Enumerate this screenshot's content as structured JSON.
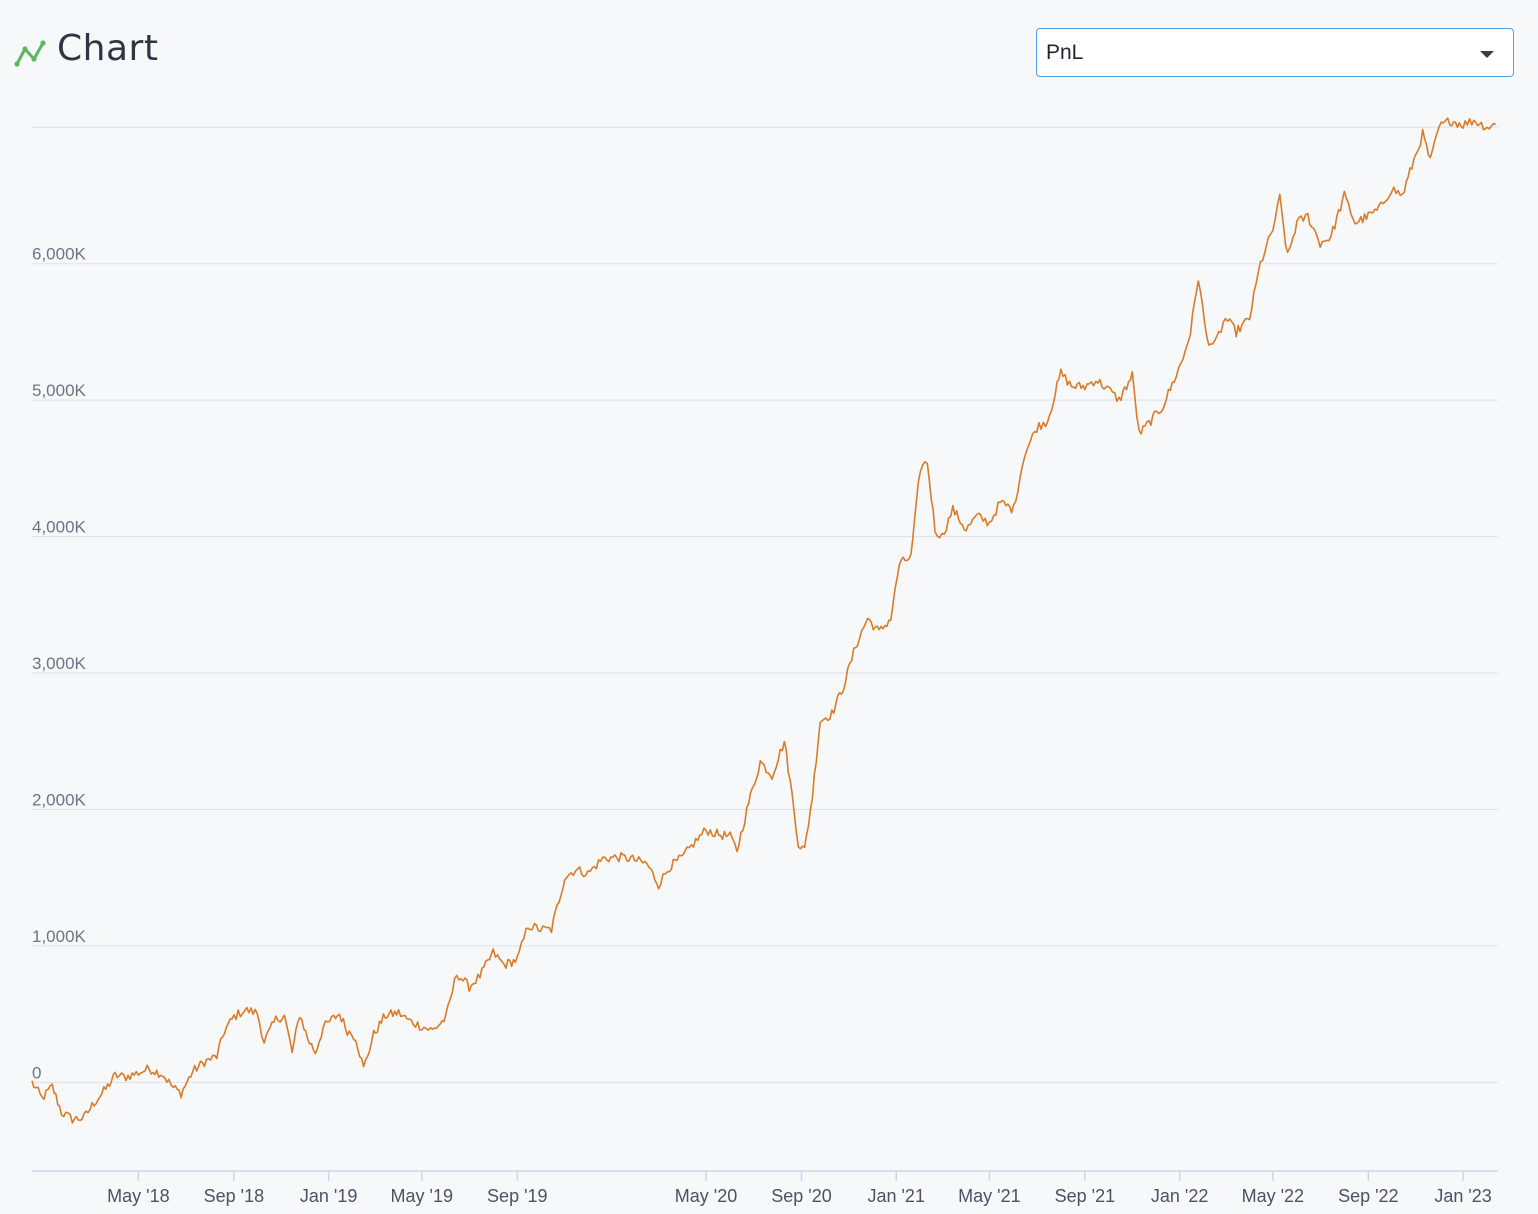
{
  "header": {
    "title": "Chart",
    "icon": "line-chart-icon",
    "icon_color": "#5cb85c"
  },
  "metric_select": {
    "value": "PnL"
  },
  "chart_data": {
    "type": "line",
    "title": "Chart",
    "xlabel": "",
    "ylabel": "",
    "ylim": [
      -650,
      6980
    ],
    "y_unit_suffix": "K",
    "y_ticks": [
      {
        "value": 0,
        "label": "0"
      },
      {
        "value": 1000,
        "label": "1,000K"
      },
      {
        "value": 2000,
        "label": "2,000K"
      },
      {
        "value": 3000,
        "label": "3,000K"
      },
      {
        "value": 4000,
        "label": "4,000K"
      },
      {
        "value": 5000,
        "label": "5,000K"
      },
      {
        "value": 6000,
        "label": "6,000K"
      },
      {
        "value": 7000,
        "label": ""
      }
    ],
    "xlim": [
      "2017-12-15",
      "2023-02-15"
    ],
    "x_ticks": [
      {
        "date": "2018-05-01",
        "label": "May '18"
      },
      {
        "date": "2018-09-01",
        "label": "Sep '18"
      },
      {
        "date": "2019-01-01",
        "label": "Jan '19"
      },
      {
        "date": "2019-05-01",
        "label": "May '19"
      },
      {
        "date": "2019-09-01",
        "label": "Sep '19"
      },
      {
        "date": "2020-05-01",
        "label": "May '20"
      },
      {
        "date": "2020-09-01",
        "label": "Sep '20"
      },
      {
        "date": "2021-01-01",
        "label": "Jan '21"
      },
      {
        "date": "2021-05-01",
        "label": "May '21"
      },
      {
        "date": "2021-09-01",
        "label": "Sep '21"
      },
      {
        "date": "2022-01-01",
        "label": "Jan '22"
      },
      {
        "date": "2022-05-01",
        "label": "May '22"
      },
      {
        "date": "2022-09-01",
        "label": "Sep '22"
      },
      {
        "date": "2023-01-01",
        "label": "Jan '23"
      }
    ],
    "grid": true,
    "legend": "none",
    "series": [
      {
        "color": "#d97b2b",
        "points": [
          [
            "2017-12-15",
            0
          ],
          [
            "2017-12-28",
            -120
          ],
          [
            "2018-01-10",
            -30
          ],
          [
            "2018-01-22",
            -220
          ],
          [
            "2018-02-05",
            -270
          ],
          [
            "2018-02-20",
            -260
          ],
          [
            "2018-03-05",
            -150
          ],
          [
            "2018-03-20",
            -50
          ],
          [
            "2018-04-01",
            50
          ],
          [
            "2018-04-15",
            40
          ],
          [
            "2018-05-01",
            70
          ],
          [
            "2018-05-15",
            100
          ],
          [
            "2018-06-01",
            60
          ],
          [
            "2018-06-15",
            -40
          ],
          [
            "2018-06-25",
            -80
          ],
          [
            "2018-07-10",
            80
          ],
          [
            "2018-07-25",
            150
          ],
          [
            "2018-08-10",
            190
          ],
          [
            "2018-08-20",
            380
          ],
          [
            "2018-09-01",
            480
          ],
          [
            "2018-09-15",
            530
          ],
          [
            "2018-10-01",
            510
          ],
          [
            "2018-10-10",
            300
          ],
          [
            "2018-10-25",
            460
          ],
          [
            "2018-11-05",
            490
          ],
          [
            "2018-11-15",
            220
          ],
          [
            "2018-11-25",
            500
          ],
          [
            "2018-12-05",
            320
          ],
          [
            "2018-12-15",
            220
          ],
          [
            "2018-12-25",
            400
          ],
          [
            "2019-01-05",
            460
          ],
          [
            "2019-01-15",
            500
          ],
          [
            "2019-01-25",
            380
          ],
          [
            "2019-02-05",
            330
          ],
          [
            "2019-02-15",
            100
          ],
          [
            "2019-02-28",
            350
          ],
          [
            "2019-03-15",
            490
          ],
          [
            "2019-04-01",
            510
          ],
          [
            "2019-04-15",
            450
          ],
          [
            "2019-05-01",
            410
          ],
          [
            "2019-05-15",
            380
          ],
          [
            "2019-06-01",
            470
          ],
          [
            "2019-06-15",
            800
          ],
          [
            "2019-07-01",
            700
          ],
          [
            "2019-07-15",
            780
          ],
          [
            "2019-08-01",
            950
          ],
          [
            "2019-08-15",
            860
          ],
          [
            "2019-09-01",
            900
          ],
          [
            "2019-09-15",
            1150
          ],
          [
            "2019-10-01",
            1120
          ],
          [
            "2019-10-15",
            1120
          ],
          [
            "2019-11-01",
            1500
          ],
          [
            "2019-11-15",
            1560
          ],
          [
            "2019-12-01",
            1530
          ],
          [
            "2019-12-20",
            1640
          ],
          [
            "2020-01-10",
            1650
          ],
          [
            "2020-01-25",
            1640
          ],
          [
            "2020-02-15",
            1600
          ],
          [
            "2020-03-01",
            1450
          ],
          [
            "2020-03-15",
            1580
          ],
          [
            "2020-04-01",
            1650
          ],
          [
            "2020-04-15",
            1750
          ],
          [
            "2020-05-01",
            1850
          ],
          [
            "2020-05-15",
            1820
          ],
          [
            "2020-06-01",
            1800
          ],
          [
            "2020-06-10",
            1700
          ],
          [
            "2020-06-25",
            2050
          ],
          [
            "2020-07-10",
            2350
          ],
          [
            "2020-07-25",
            2250
          ],
          [
            "2020-08-10",
            2500
          ],
          [
            "2020-08-20",
            2100
          ],
          [
            "2020-08-28",
            1750
          ],
          [
            "2020-09-05",
            1700
          ],
          [
            "2020-09-15",
            2100
          ],
          [
            "2020-09-25",
            2650
          ],
          [
            "2020-10-10",
            2700
          ],
          [
            "2020-10-25",
            2900
          ],
          [
            "2020-11-10",
            3200
          ],
          [
            "2020-11-25",
            3400
          ],
          [
            "2020-12-10",
            3300
          ],
          [
            "2020-12-25",
            3400
          ],
          [
            "2021-01-05",
            3800
          ],
          [
            "2021-01-20",
            3850
          ],
          [
            "2021-02-01",
            4500
          ],
          [
            "2021-02-10",
            4550
          ],
          [
            "2021-02-20",
            4050
          ],
          [
            "2021-03-01",
            4000
          ],
          [
            "2021-03-15",
            4200
          ],
          [
            "2021-04-01",
            4050
          ],
          [
            "2021-04-15",
            4150
          ],
          [
            "2021-05-01",
            4100
          ],
          [
            "2021-05-15",
            4250
          ],
          [
            "2021-06-01",
            4200
          ],
          [
            "2021-06-15",
            4600
          ],
          [
            "2021-07-01",
            4800
          ],
          [
            "2021-07-15",
            4850
          ],
          [
            "2021-08-01",
            5200
          ],
          [
            "2021-08-15",
            5100
          ],
          [
            "2021-09-01",
            5100
          ],
          [
            "2021-09-15",
            5150
          ],
          [
            "2021-10-01",
            5080
          ],
          [
            "2021-10-15",
            5000
          ],
          [
            "2021-11-01",
            5180
          ],
          [
            "2021-11-10",
            4750
          ],
          [
            "2021-11-25",
            4850
          ],
          [
            "2021-12-10",
            4950
          ],
          [
            "2021-12-25",
            5150
          ],
          [
            "2022-01-05",
            5300
          ],
          [
            "2022-01-15",
            5500
          ],
          [
            "2022-01-25",
            5900
          ],
          [
            "2022-02-05",
            5450
          ],
          [
            "2022-02-15",
            5400
          ],
          [
            "2022-03-01",
            5600
          ],
          [
            "2022-03-15",
            5500
          ],
          [
            "2022-04-01",
            5600
          ],
          [
            "2022-04-15",
            6000
          ],
          [
            "2022-05-01",
            6250
          ],
          [
            "2022-05-10",
            6480
          ],
          [
            "2022-05-20",
            6050
          ],
          [
            "2022-06-01",
            6300
          ],
          [
            "2022-06-15",
            6350
          ],
          [
            "2022-07-01",
            6150
          ],
          [
            "2022-07-15",
            6200
          ],
          [
            "2022-08-01",
            6500
          ],
          [
            "2022-08-15",
            6300
          ],
          [
            "2022-09-01",
            6350
          ],
          [
            "2022-09-15",
            6400
          ],
          [
            "2022-10-01",
            6550
          ],
          [
            "2022-10-15",
            6500
          ],
          [
            "2022-11-01",
            6800
          ],
          [
            "2022-11-10",
            6950
          ],
          [
            "2022-11-20",
            6750
          ],
          [
            "2022-12-01",
            7000
          ],
          [
            "2022-12-15",
            7050
          ],
          [
            "2023-01-01",
            7020
          ],
          [
            "2023-01-15",
            7050
          ],
          [
            "2023-02-01",
            7000
          ],
          [
            "2023-02-12",
            7020
          ]
        ]
      }
    ]
  }
}
